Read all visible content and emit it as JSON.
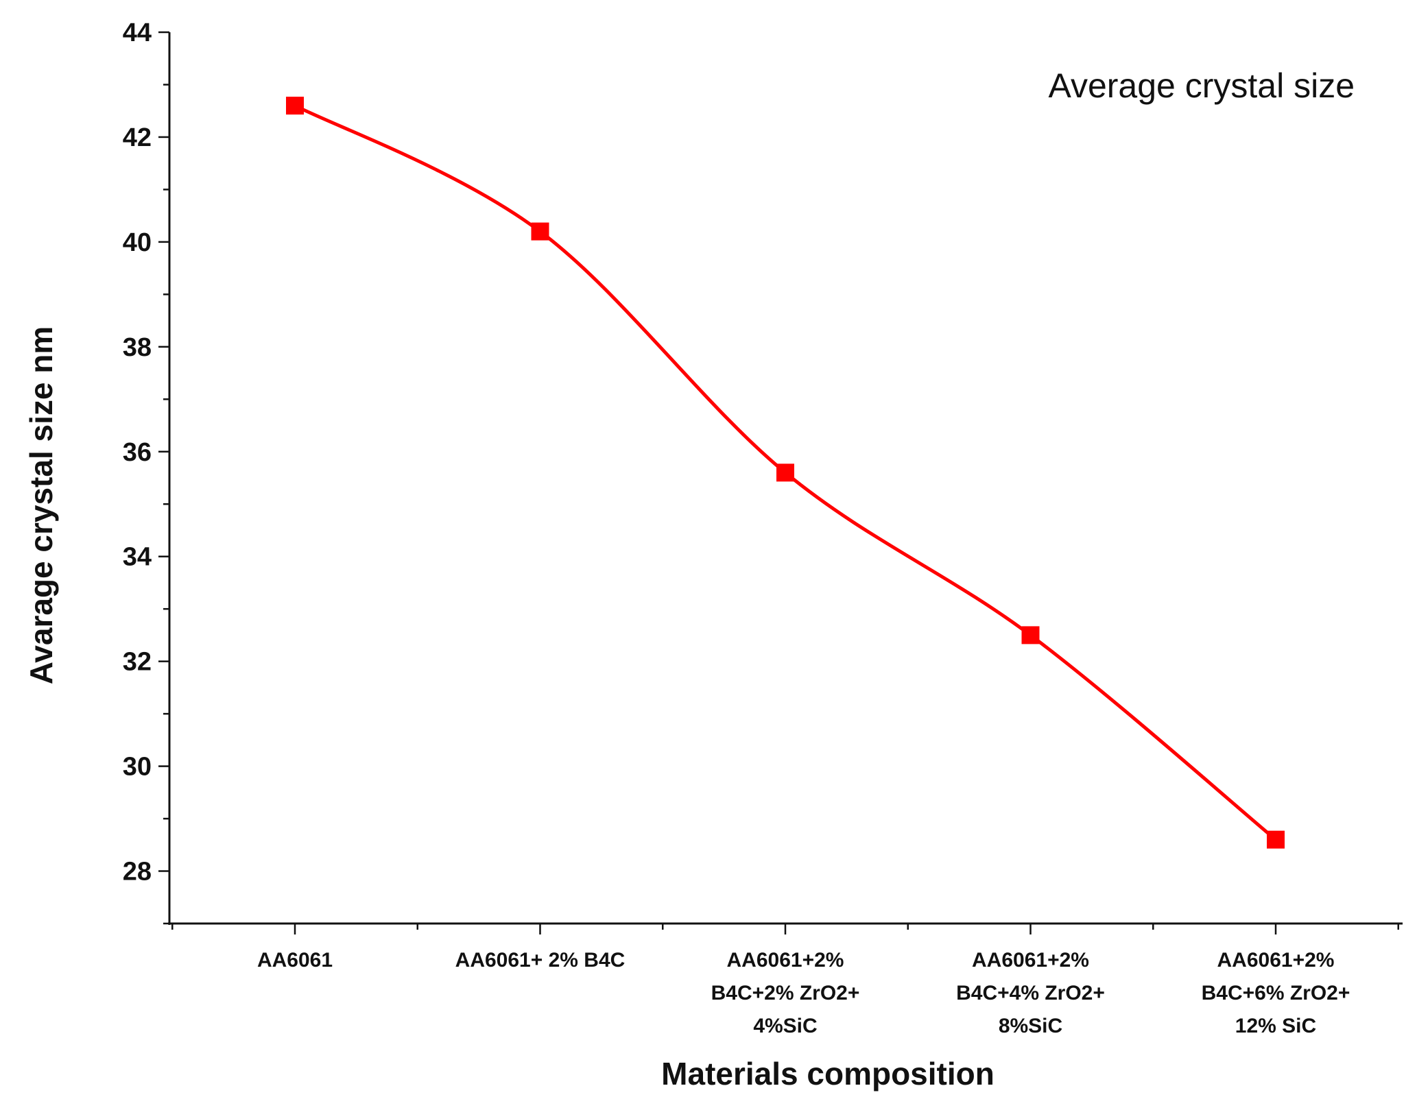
{
  "chart_data": {
    "type": "line",
    "categories": [
      "AA6061",
      "AA6061+ 2% B4C",
      "AA6061+2% B4C+2% ZrO2+ 4%SiC",
      "AA6061+2% B4C+4% ZrO2+ 8%SiC",
      "AA6061+2% B4C+6% ZrO2+ 12% SiC"
    ],
    "category_lines": [
      [
        "AA6061"
      ],
      [
        "AA6061+ 2% B4C"
      ],
      [
        "AA6061+2%",
        "B4C+2% ZrO2+",
        "4%SiC"
      ],
      [
        "AA6061+2%",
        "B4C+4% ZrO2+",
        "8%SiC"
      ],
      [
        "AA6061+2%",
        "B4C+6% ZrO2+",
        "12% SiC"
      ]
    ],
    "series": [
      {
        "name": "Average crystal size",
        "values": [
          42.6,
          40.2,
          35.6,
          32.5,
          28.6
        ],
        "color": "#ff0000"
      }
    ],
    "title": "",
    "xlabel": "Materials composition",
    "ylabel": "Avarage crystal size nm",
    "ylim": [
      27,
      44
    ],
    "yticks": [
      28,
      30,
      32,
      34,
      36,
      38,
      40,
      42,
      44
    ],
    "yminor_step": 1,
    "legend": "top-right",
    "grid": false
  }
}
